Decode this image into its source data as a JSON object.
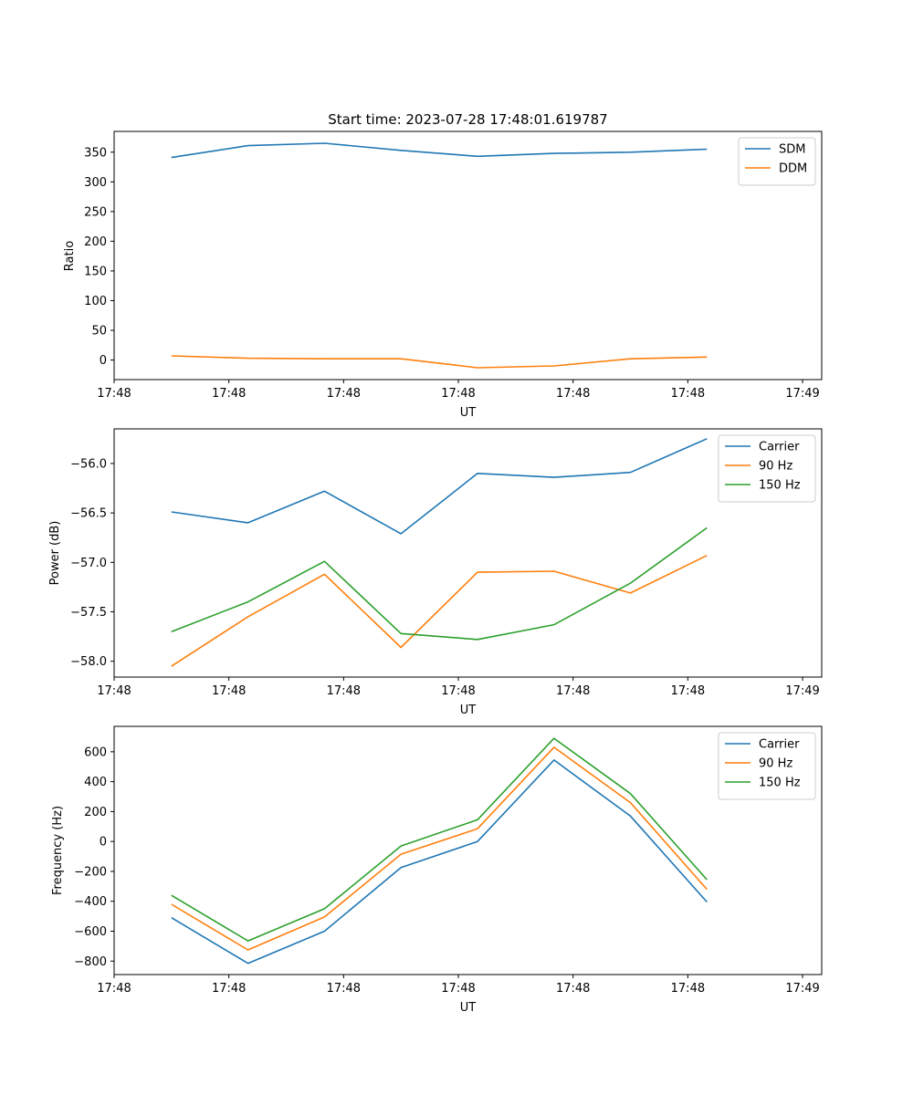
{
  "chart_data": [
    {
      "type": "line",
      "title": "Start time: 2023-07-28 17:48:01.619787",
      "xlabel": "UT",
      "ylabel": "Ratio",
      "x": [
        0,
        1,
        2,
        3,
        4,
        5,
        6,
        7
      ],
      "xlim": [
        -0.75,
        8.5
      ],
      "x_ticks": [
        -0.75,
        0.75,
        2.25,
        3.75,
        5.25,
        6.75,
        8.25
      ],
      "x_tick_labels": [
        "17:48",
        "17:48",
        "17:48",
        "17:48",
        "17:48",
        "17:48",
        "17:49"
      ],
      "ylim": [
        -33,
        385
      ],
      "y_ticks": [
        0,
        50,
        100,
        150,
        200,
        250,
        300,
        350
      ],
      "y_tick_labels": [
        "0",
        "50",
        "100",
        "150",
        "200",
        "250",
        "300",
        "350"
      ],
      "legend_position": "top-right",
      "series": [
        {
          "name": "SDM",
          "color": "#1f77b4",
          "values": [
            341,
            361,
            365,
            353,
            343,
            348,
            350,
            355
          ]
        },
        {
          "name": "DDM",
          "color": "#ff7f0e",
          "values": [
            7,
            3,
            2,
            2,
            -13,
            -10,
            2,
            5
          ]
        }
      ]
    },
    {
      "type": "line",
      "title": "",
      "xlabel": "UT",
      "ylabel": "Power (dB)",
      "x": [
        0,
        1,
        2,
        3,
        4,
        5,
        6,
        7
      ],
      "xlim": [
        -0.75,
        8.5
      ],
      "x_ticks": [
        -0.75,
        0.75,
        2.25,
        3.75,
        5.25,
        6.75,
        8.25
      ],
      "x_tick_labels": [
        "17:48",
        "17:48",
        "17:48",
        "17:48",
        "17:48",
        "17:48",
        "17:49"
      ],
      "ylim": [
        -58.16,
        -55.65
      ],
      "y_ticks": [
        -58.0,
        -57.5,
        -57.0,
        -56.5,
        -56.0
      ],
      "y_tick_labels": [
        "−58.0",
        "−57.5",
        "−57.0",
        "−56.5",
        "−56.0"
      ],
      "legend_position": "top-right",
      "series": [
        {
          "name": "Carrier",
          "color": "#1f77b4",
          "values": [
            -56.49,
            -56.6,
            -56.28,
            -56.71,
            -56.1,
            -56.14,
            -56.09,
            -55.75
          ]
        },
        {
          "name": "90 Hz",
          "color": "#ff7f0e",
          "values": [
            -58.05,
            -57.55,
            -57.12,
            -57.86,
            -57.1,
            -57.09,
            -57.31,
            -56.93
          ]
        },
        {
          "name": "150 Hz",
          "color": "#2ca02c",
          "values": [
            -57.7,
            -57.4,
            -56.99,
            -57.72,
            -57.78,
            -57.63,
            -57.21,
            -56.65
          ]
        }
      ]
    },
    {
      "type": "line",
      "title": "",
      "xlabel": "UT",
      "ylabel": "Frequency (Hz)",
      "x": [
        0,
        1,
        2,
        3,
        4,
        5,
        6,
        7
      ],
      "xlim": [
        -0.75,
        8.5
      ],
      "x_ticks": [
        -0.75,
        0.75,
        2.25,
        3.75,
        5.25,
        6.75,
        8.25
      ],
      "x_tick_labels": [
        "17:48",
        "17:48",
        "17:48",
        "17:48",
        "17:48",
        "17:48",
        "17:49"
      ],
      "ylim": [
        -890,
        770
      ],
      "y_ticks": [
        -800,
        -600,
        -400,
        -200,
        0,
        200,
        400,
        600
      ],
      "y_tick_labels": [
        "−800",
        "−600",
        "−400",
        "−200",
        "0",
        "200",
        "400",
        "600"
      ],
      "legend_position": "top-right",
      "series": [
        {
          "name": "Carrier",
          "color": "#1f77b4",
          "values": [
            -510,
            -815,
            -600,
            -175,
            0,
            545,
            170,
            -405
          ]
        },
        {
          "name": "90 Hz",
          "color": "#ff7f0e",
          "values": [
            -420,
            -725,
            -505,
            -85,
            85,
            630,
            260,
            -320
          ]
        },
        {
          "name": "150 Hz",
          "color": "#2ca02c",
          "values": [
            -360,
            -665,
            -450,
            -30,
            145,
            690,
            320,
            -255
          ]
        }
      ]
    }
  ]
}
